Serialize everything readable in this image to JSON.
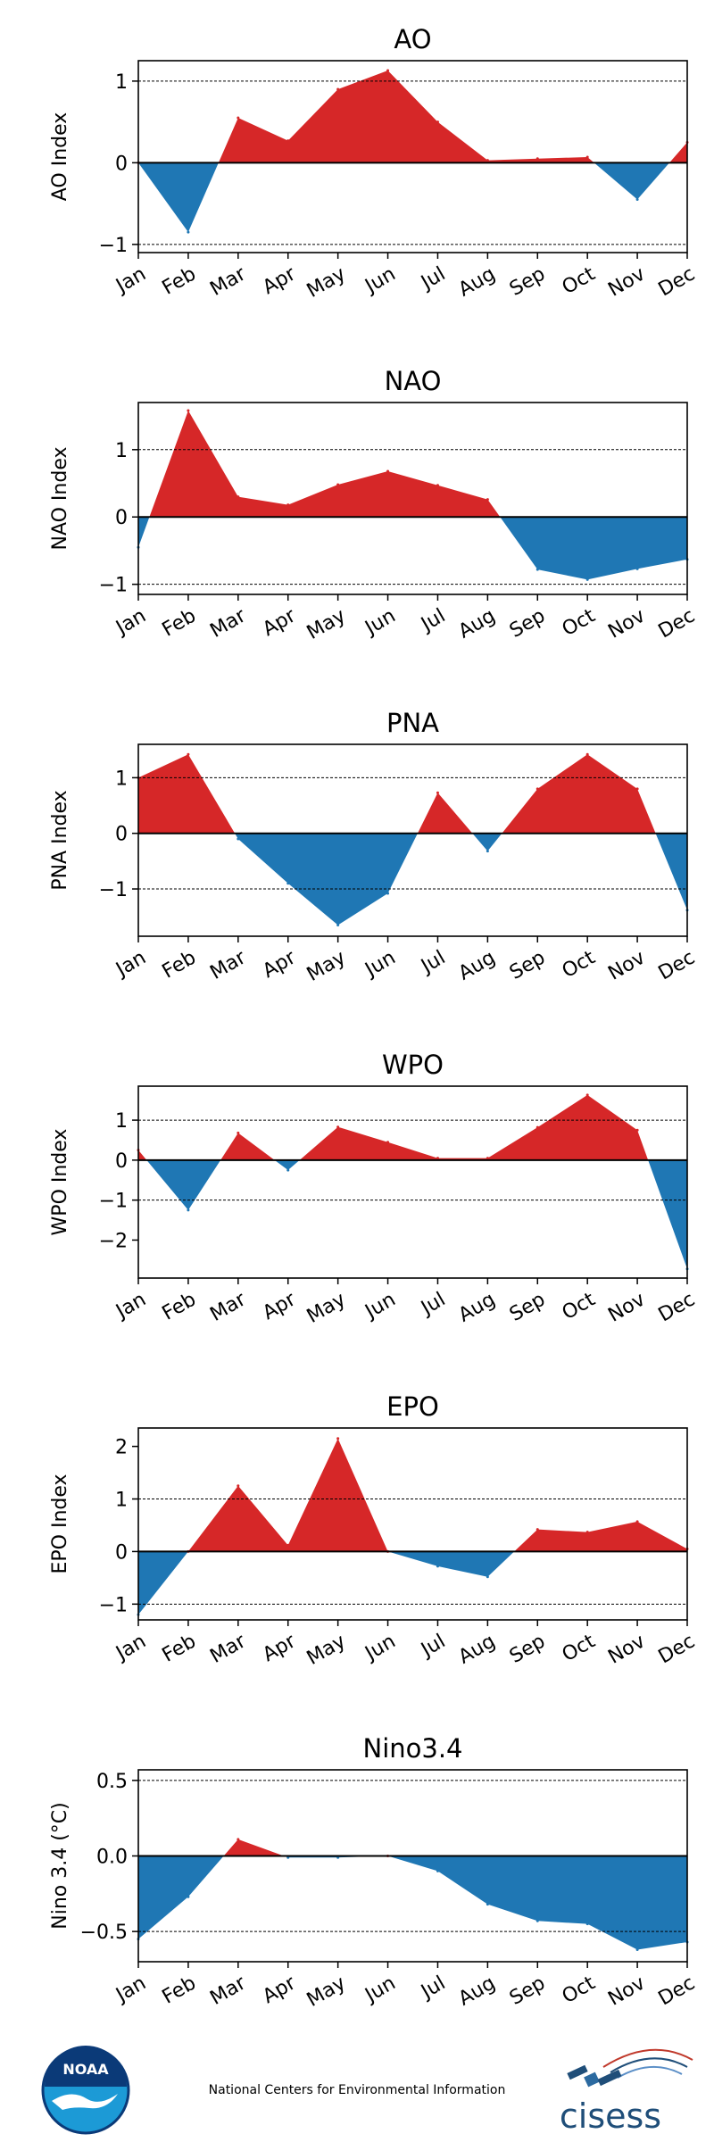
{
  "months": [
    "Jan",
    "Feb",
    "Mar",
    "Apr",
    "May",
    "Jun",
    "Jul",
    "Aug",
    "Sep",
    "Oct",
    "Nov",
    "Dec"
  ],
  "colors": {
    "positive": "#d62728",
    "negative": "#1f77b4",
    "zero_line": "#000000",
    "grid": "#000000"
  },
  "chart_data": [
    {
      "type": "area",
      "title": "AO",
      "ylabel": "AO Index",
      "xlabel": "",
      "categories": [
        "Jan",
        "Feb",
        "Mar",
        "Apr",
        "May",
        "Jun",
        "Jul",
        "Aug",
        "Sep",
        "Oct",
        "Nov",
        "Dec"
      ],
      "values": [
        0.0,
        -0.85,
        0.55,
        0.27,
        0.9,
        1.13,
        0.5,
        0.03,
        0.05,
        0.07,
        -0.45,
        0.25
      ],
      "ylim": [
        -1.1,
        1.25
      ],
      "yticks": [
        -1,
        0,
        1
      ],
      "ytick_labels": [
        "−1",
        "0",
        "1"
      ],
      "dashed_lines": [
        -1,
        1
      ]
    },
    {
      "type": "area",
      "title": "NAO",
      "ylabel": "NAO Index",
      "xlabel": "",
      "categories": [
        "Jan",
        "Feb",
        "Mar",
        "Apr",
        "May",
        "Jun",
        "Jul",
        "Aug",
        "Sep",
        "Oct",
        "Nov",
        "Dec"
      ],
      "values": [
        -0.45,
        1.58,
        0.3,
        0.18,
        0.48,
        0.68,
        0.47,
        0.26,
        -0.78,
        -0.93,
        -0.77,
        -0.63
      ],
      "ylim": [
        -1.15,
        1.7
      ],
      "yticks": [
        -1,
        0,
        1
      ],
      "ytick_labels": [
        "−1",
        "0",
        "1"
      ],
      "dashed_lines": [
        -1,
        1
      ]
    },
    {
      "type": "area",
      "title": "PNA",
      "ylabel": "PNA Index",
      "xlabel": "",
      "categories": [
        "Jan",
        "Feb",
        "Mar",
        "Apr",
        "May",
        "Jun",
        "Jul",
        "Aug",
        "Sep",
        "Oct",
        "Nov",
        "Dec"
      ],
      "values": [
        1.0,
        1.42,
        -0.1,
        -0.9,
        -1.65,
        -1.08,
        0.73,
        -0.32,
        0.8,
        1.42,
        0.8,
        -1.38
      ],
      "ylim": [
        -1.85,
        1.6
      ],
      "yticks": [
        -1,
        0,
        1
      ],
      "ytick_labels": [
        "−1",
        "0",
        "1"
      ],
      "dashed_lines": [
        -1,
        1
      ]
    },
    {
      "type": "area",
      "title": "WPO",
      "ylabel": "WPO Index",
      "xlabel": "",
      "categories": [
        "Jan",
        "Feb",
        "Mar",
        "Apr",
        "May",
        "Jun",
        "Jul",
        "Aug",
        "Sep",
        "Oct",
        "Nov",
        "Dec"
      ],
      "values": [
        0.25,
        -1.25,
        0.68,
        -0.25,
        0.83,
        0.45,
        0.05,
        0.05,
        0.82,
        1.63,
        0.75,
        -2.72
      ],
      "ylim": [
        -2.95,
        1.85
      ],
      "yticks": [
        -2,
        -1,
        0,
        1
      ],
      "ytick_labels": [
        "−2",
        "−1",
        "0",
        "1"
      ],
      "dashed_lines": [
        -1,
        1
      ]
    },
    {
      "type": "area",
      "title": "EPO",
      "ylabel": "EPO Index",
      "xlabel": "",
      "categories": [
        "Jan",
        "Feb",
        "Mar",
        "Apr",
        "May",
        "Jun",
        "Jul",
        "Aug",
        "Sep",
        "Oct",
        "Nov",
        "Dec"
      ],
      "values": [
        -1.2,
        0.0,
        1.25,
        0.12,
        2.15,
        0.0,
        -0.28,
        -0.48,
        0.42,
        0.37,
        0.57,
        0.05
      ],
      "ylim": [
        -1.3,
        2.35
      ],
      "yticks": [
        -1,
        0,
        1,
        2
      ],
      "ytick_labels": [
        "−1",
        "0",
        "1",
        "2"
      ],
      "dashed_lines": [
        -1,
        1
      ]
    },
    {
      "type": "area",
      "title": "Nino3.4",
      "ylabel": "Nino 3.4 (°C)",
      "xlabel": "",
      "categories": [
        "Jan",
        "Feb",
        "Mar",
        "Apr",
        "May",
        "Jun",
        "Jul",
        "Aug",
        "Sep",
        "Oct",
        "Nov",
        "Dec"
      ],
      "values": [
        -0.55,
        -0.27,
        0.11,
        -0.01,
        -0.01,
        0.0,
        -0.1,
        -0.32,
        -0.43,
        -0.45,
        -0.62,
        -0.57
      ],
      "ylim": [
        -0.7,
        0.57
      ],
      "yticks": [
        -0.5,
        0.0,
        0.5
      ],
      "ytick_labels": [
        "−0.5",
        "0.0",
        "0.5"
      ],
      "dashed_lines": [
        -0.5,
        0.5
      ]
    }
  ],
  "footer": {
    "noaa_logo_text": "NOAA",
    "center_text": "National Centers for Environmental Information",
    "cisess_logo_text": "cisess",
    "noaa_icon": "noaa-logo-icon",
    "cisess_icon": "cisess-satellite-icon"
  }
}
